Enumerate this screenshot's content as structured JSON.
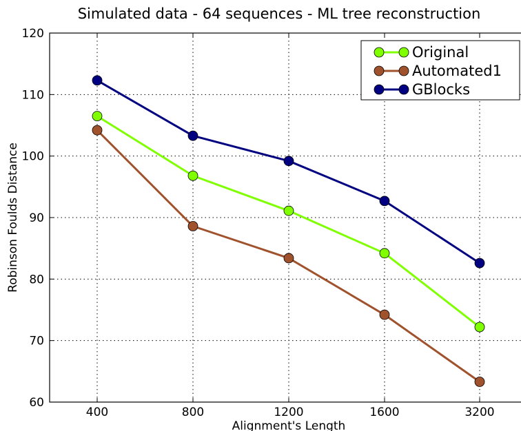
{
  "chart_data": {
    "type": "line",
    "title": "Simulated data - 64 sequences - ML tree reconstruction",
    "xlabel": "Alignment's Length",
    "ylabel": "Robinson Foulds Distance",
    "categories": [
      "400",
      "800",
      "1200",
      "1600",
      "3200"
    ],
    "ylim": [
      60,
      120
    ],
    "yticks": [
      60,
      70,
      80,
      90,
      100,
      110,
      120
    ],
    "grid": true,
    "legend_position": "top-right",
    "series": [
      {
        "name": "Original",
        "color": "#7fff00",
        "values": [
          106.5,
          96.8,
          91.1,
          84.2,
          72.2
        ]
      },
      {
        "name": "Automated1",
        "color": "#a0522d",
        "values": [
          104.2,
          88.6,
          83.4,
          74.2,
          63.3
        ]
      },
      {
        "name": "GBlocks",
        "color": "#000080",
        "values": [
          112.3,
          103.3,
          99.2,
          92.7,
          82.6
        ]
      }
    ]
  }
}
